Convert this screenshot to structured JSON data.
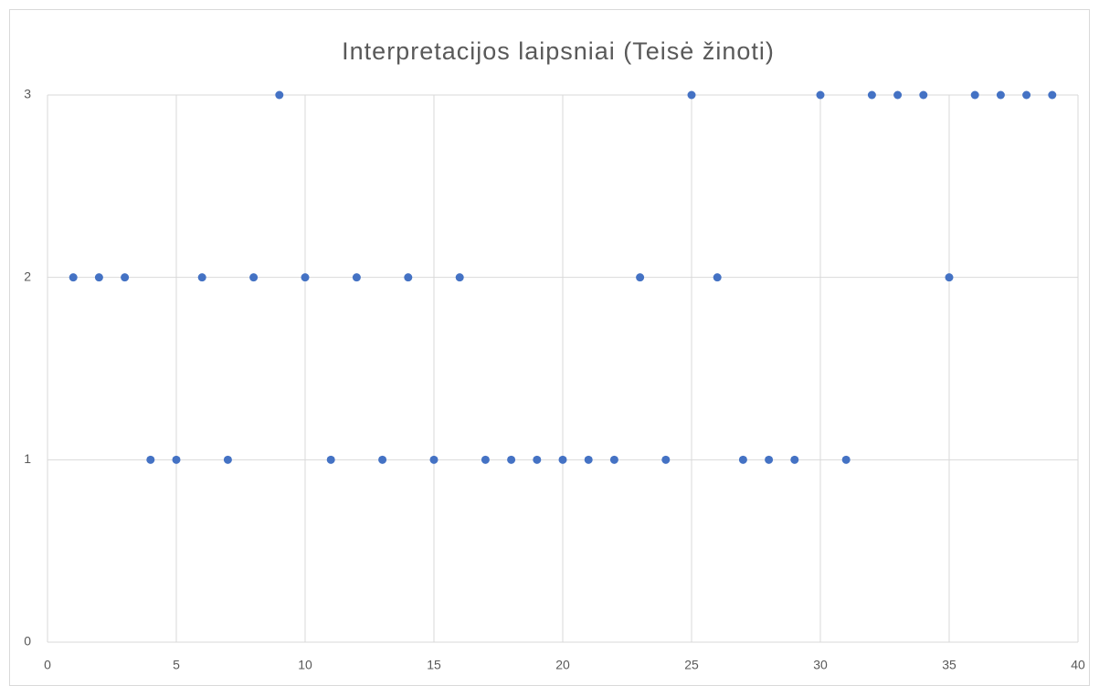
{
  "chart_data": {
    "type": "scatter",
    "title": "Interpretacijos laipsniai (Teisė žinoti)",
    "x": [
      1,
      2,
      3,
      4,
      5,
      6,
      7,
      8,
      9,
      10,
      11,
      12,
      13,
      14,
      15,
      16,
      17,
      18,
      19,
      20,
      21,
      22,
      23,
      24,
      25,
      26,
      27,
      28,
      29,
      30,
      31,
      32,
      33,
      34,
      35,
      36,
      37,
      38,
      39
    ],
    "series": [
      {
        "name": "Teisė žinoti",
        "color": "#4472c4",
        "values": [
          2,
          2,
          2,
          1,
          1,
          2,
          1,
          2,
          3,
          2,
          1,
          2,
          1,
          2,
          1,
          2,
          1,
          1,
          1,
          1,
          1,
          1,
          2,
          1,
          3,
          2,
          1,
          1,
          1,
          3,
          1,
          3,
          3,
          3,
          2,
          3,
          3,
          3,
          3
        ]
      }
    ],
    "xlim": [
      0,
      40
    ],
    "xticks": [
      0,
      5,
      10,
      15,
      20,
      25,
      30,
      35,
      40
    ],
    "ylim": [
      0,
      3
    ],
    "yticks": [
      0,
      1,
      2,
      3
    ],
    "grid": true
  }
}
